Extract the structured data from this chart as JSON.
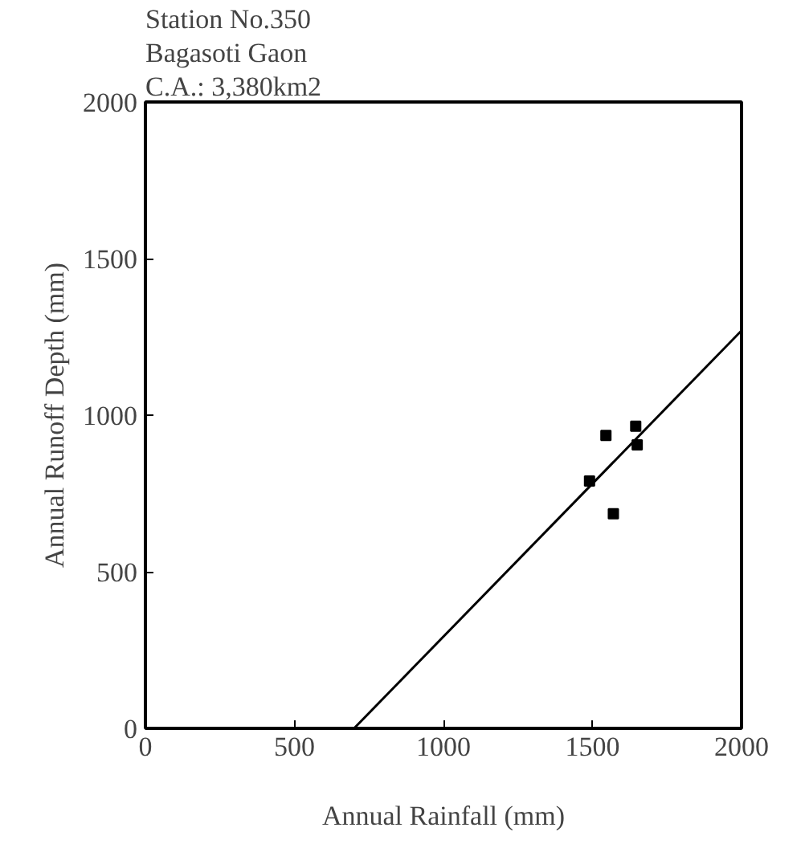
{
  "chart_data": {
    "type": "scatter",
    "title": "Station No.350",
    "subtitle": "Bagasoti Gaon",
    "annotations": [
      "C.A.: 3,380km2"
    ],
    "xlabel": "Annual Rainfall (mm)",
    "ylabel": "Annual Runoff Depth (mm)",
    "series": [
      {
        "color": "#000000",
        "marker": "square",
        "x": [
          1490,
          1545,
          1570,
          1645,
          1650
        ],
        "values": [
          790,
          935,
          685,
          965,
          905
        ]
      },
      {
        "type": "line",
        "color": "#000000",
        "marker": "none",
        "x": [
          700,
          2000
        ],
        "values": [
          0,
          1270
        ]
      }
    ],
    "xlim": [
      0,
      2000
    ],
    "ylim": [
      0,
      2000
    ],
    "xticks": [
      0,
      500,
      1000,
      1500,
      2000
    ],
    "yticks": [
      0,
      500,
      1000,
      1500,
      2000
    ],
    "grid": false
  }
}
